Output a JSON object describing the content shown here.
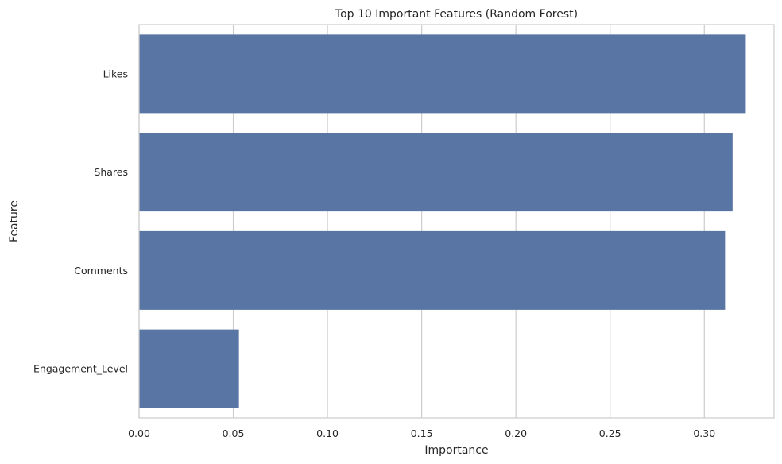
{
  "chart_data": {
    "type": "bar",
    "orientation": "horizontal",
    "title": "Top 10 Important Features (Random Forest)",
    "xlabel": "Importance",
    "ylabel": "Feature",
    "categories": [
      "Likes",
      "Shares",
      "Comments",
      "Engagement_Level"
    ],
    "values": [
      0.322,
      0.315,
      0.311,
      0.053
    ],
    "xlim": [
      0,
      0.337
    ],
    "xticks": [
      0.0,
      0.05,
      0.1,
      0.15,
      0.2,
      0.25,
      0.3
    ],
    "xtick_labels": [
      "0.00",
      "0.05",
      "0.10",
      "0.15",
      "0.20",
      "0.25",
      "0.30"
    ],
    "grid": "vertical",
    "bar_color": "#5975a4",
    "legend": "none"
  }
}
